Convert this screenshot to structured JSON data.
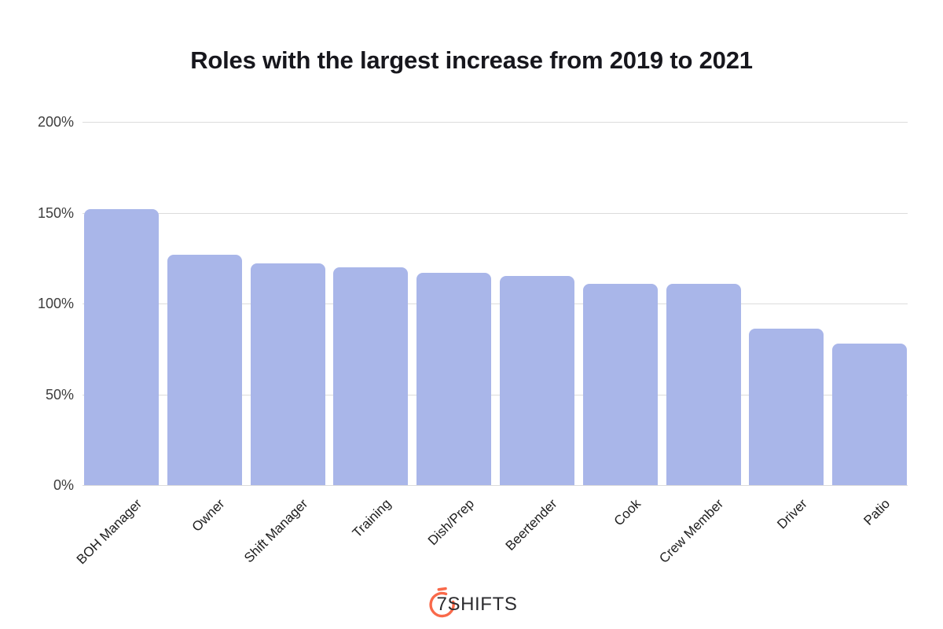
{
  "chart_data": {
    "type": "bar",
    "title": "Roles with the largest increase from 2019 to 2021",
    "categories": [
      "BOH Manager",
      "Owner",
      "Shift Manager",
      "Training",
      "Dish/Prep",
      "Beertender",
      "Cook",
      "Crew Member",
      "Driver",
      "Patio"
    ],
    "values": [
      152,
      127,
      122,
      120,
      117,
      115,
      111,
      111,
      86,
      78
    ],
    "unit": "%",
    "xlabel": "",
    "ylabel": "",
    "ylim": [
      0,
      200
    ],
    "yticks": [
      0,
      50,
      100,
      150,
      200
    ],
    "ytick_labels": [
      "0%",
      "50%",
      "100%",
      "150%",
      "200%"
    ],
    "grid": true,
    "legend": "none",
    "bar_color": "#a9b6e9",
    "gridline_color": "#dcdcdc",
    "tick_label_color": "#3d3d3d",
    "category_label_color": "#1e1e1e",
    "title_color": "#17171d"
  },
  "footer": {
    "logo_text": "7SHIFTS",
    "logo_icon": "stopwatch-arc-icon",
    "logo_accent_color": "#f9694a",
    "logo_text_color": "#2b2b2e"
  }
}
